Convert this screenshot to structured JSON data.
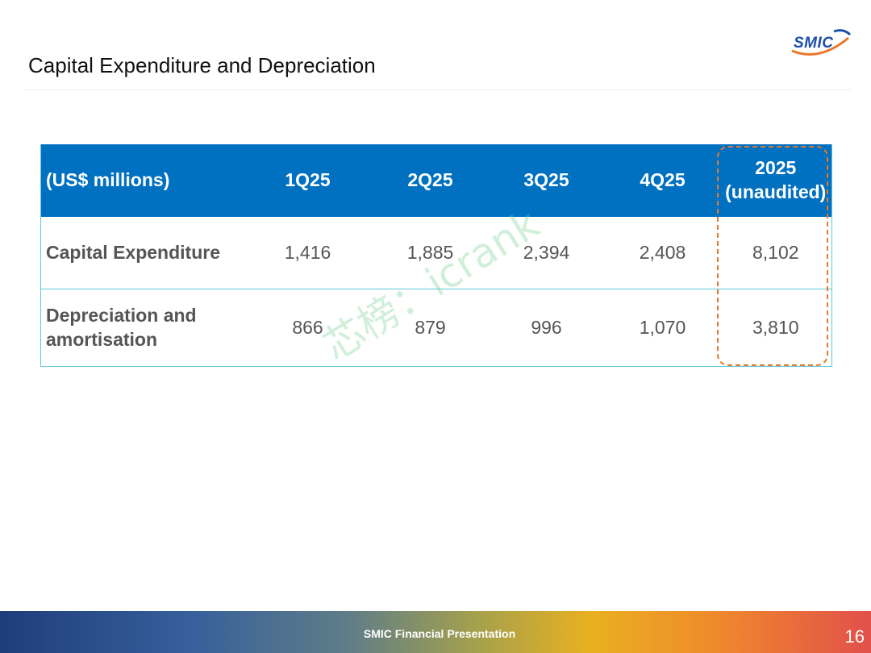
{
  "slide": {
    "title": "Capital Expenditure and Depreciation",
    "logo_text": "SMIC"
  },
  "table": {
    "headers": [
      "(US$ millions)",
      "1Q25",
      "2Q25",
      "3Q25",
      "4Q25"
    ],
    "header_last_line1": "2025",
    "header_last_line2": "(unaudited)",
    "rows": [
      {
        "label": "Capital Expenditure",
        "values": [
          "1,416",
          "1,885",
          "2,394",
          "2,408",
          "8,102"
        ]
      },
      {
        "label_line1": "Depreciation and",
        "label_line2": "amortisation",
        "values": [
          "866",
          "879",
          "996",
          "1,070",
          "3,810"
        ]
      }
    ]
  },
  "watermark": "芯榜：icrank",
  "footer": {
    "text": "SMIC Financial Presentation",
    "page_number": "16"
  },
  "colors": {
    "header_bg": "#0070c0",
    "highlight": "#e8782a",
    "row_border": "#5bc8d8"
  }
}
